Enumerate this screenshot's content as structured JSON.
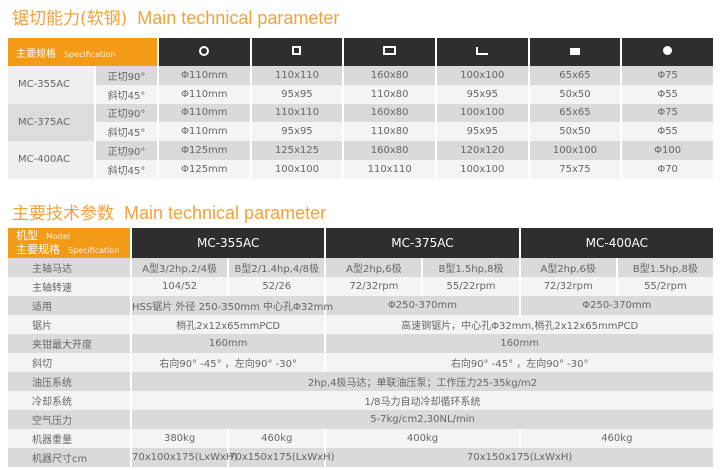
{
  "section1": {
    "title_cn": "锯切能力(软钢)",
    "title_en": "Main technical parameter",
    "header": {
      "label_cn": "主要规格",
      "label_en": "Specification",
      "shape_icons": [
        "round-hollow-icon",
        "square-tube-icon",
        "rectangular-tube-icon",
        "angle-icon",
        "solid-square-icon",
        "solid-round-icon"
      ]
    },
    "models": [
      {
        "name": "MC-355AC",
        "rows": [
          {
            "angle": "正切90°",
            "values": [
              "Φ110mm",
              "110x110",
              "160x80",
              "100x100",
              "65x65",
              "Φ75"
            ]
          },
          {
            "angle": "斜切45°",
            "values": [
              "Φ110mm",
              "95x95",
              "110x80",
              "95x95",
              "50x50",
              "Φ55"
            ]
          }
        ]
      },
      {
        "name": "MC-375AC",
        "rows": [
          {
            "angle": "正切90°",
            "values": [
              "Φ110mm",
              "110x110",
              "160x80",
              "100x100",
              "65x65",
              "Φ75"
            ]
          },
          {
            "angle": "斜切45°",
            "values": [
              "Φ110mm",
              "95x95",
              "110x80",
              "95x95",
              "50x50",
              "Φ55"
            ]
          }
        ]
      },
      {
        "name": "MC-400AC",
        "rows": [
          {
            "angle": "正切90°",
            "values": [
              "Φ125mm",
              "125x125",
              "160x80",
              "120x120",
              "100x100",
              "Φ100"
            ]
          },
          {
            "angle": "斜切45°",
            "values": [
              "Φ125mm",
              "100x100",
              "110x110",
              "100x100",
              "75x75",
              "Φ70"
            ]
          }
        ]
      }
    ]
  },
  "section2": {
    "title_cn": "主要技术参数",
    "title_en": "Main technical parameter",
    "header": {
      "l1_cn": "机型",
      "l1_en": "Model",
      "l2_cn": "主要规格",
      "l2_en": "Specification",
      "models": [
        "MC-355AC",
        "MC-375AC",
        "MC-400AC"
      ]
    },
    "rows": {
      "motor": {
        "label": "主轴马达",
        "values": [
          "A型3/2hp,2/4极",
          "B型2/1.4hp,4/8极",
          "A型2hp,6极",
          "B型1.5hp,8极",
          "A型2hp,6极",
          "B型1.5hp,8极"
        ]
      },
      "speed": {
        "label": "主轴转速",
        "values": [
          "104/52",
          "52/26",
          "72/32rpm",
          "55/22rpm",
          "72/32rpm",
          "55/2rpm"
        ]
      },
      "apply": {
        "label": "适用",
        "values": [
          "HSS锯片 外径 250-350mm 中心孔Φ32mm",
          "Φ250-370mm",
          "Φ250-370mm"
        ]
      },
      "blade": {
        "label": "锯片",
        "values": [
          "梢孔2x12x65mmPCD",
          "高速钢锯片，中心孔Φ32mm,梢孔2x12x65mmPCD"
        ]
      },
      "vise": {
        "label": "夹钳最大开度",
        "values": [
          "160mm",
          "160mm"
        ]
      },
      "miter": {
        "label": "斜切",
        "values": [
          "右向90° -45° ，左向90° -30°",
          "右向90° -45° ，左向90° -30°"
        ]
      },
      "hydraulic": {
        "label": "油压系统",
        "values": [
          "2hp,4极马达；单联油压泵；工作压力25-35kg/m2"
        ]
      },
      "coolant": {
        "label": "冷却系统",
        "values": [
          "1/8马力自动冷却循环系统"
        ]
      },
      "air": {
        "label": "空气压力",
        "values": [
          "5-7kg/cm2,30NL/min"
        ]
      },
      "weight": {
        "label": "机器重量",
        "values": [
          "380kg",
          "460kg",
          "400kg",
          "460kg"
        ]
      },
      "size": {
        "label": "机器尺寸cm",
        "values": [
          "70x100x175(LxWxH)",
          "70x150x175(LxWxH)",
          "70x150x175(LxWxH)"
        ]
      }
    }
  }
}
